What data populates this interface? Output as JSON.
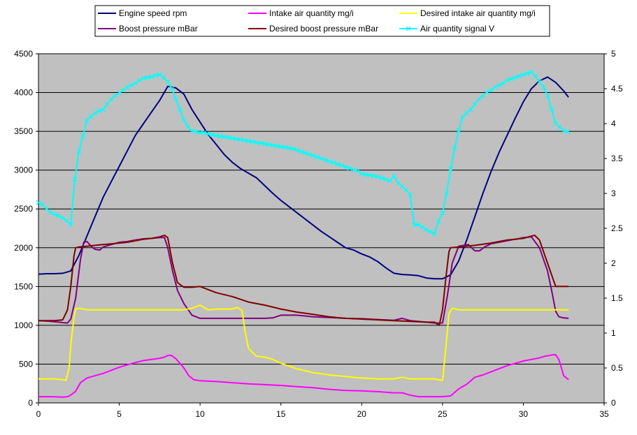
{
  "chart_data": {
    "type": "line",
    "title": "",
    "xlabel": "",
    "ylabel": "",
    "y2label": "",
    "xlim": [
      0,
      35
    ],
    "ylim": [
      0,
      4500
    ],
    "y2lim": [
      0,
      5
    ],
    "x_ticks": [
      "0",
      "5",
      "10",
      "15",
      "20",
      "25",
      "30",
      "35"
    ],
    "y_ticks": [
      "0",
      "500",
      "1000",
      "1500",
      "2000",
      "2500",
      "3000",
      "3500",
      "4000",
      "4500"
    ],
    "y2_ticks": [
      "0",
      "0.5",
      "1",
      "1.5",
      "2",
      "2.5",
      "3",
      "3.5",
      "4",
      "4.5",
      "5"
    ],
    "grid": "horizontal",
    "legend_position": "top",
    "plot_background": "#c0c0c0",
    "series": [
      {
        "name": "Engine speed rpm",
        "color": "#000080",
        "axis": "left",
        "marker": "none",
        "x": [
          0,
          0.5,
          1,
          1.5,
          2,
          2.5,
          3,
          3.5,
          4,
          4.5,
          5,
          5.5,
          6,
          6.5,
          7,
          7.5,
          8,
          8.5,
          9,
          9.5,
          10,
          10.5,
          11,
          11.5,
          12,
          12.5,
          13,
          13.5,
          14,
          14.5,
          15,
          15.5,
          16,
          16.5,
          17,
          17.5,
          18,
          18.5,
          19,
          19.5,
          20,
          20.5,
          21,
          21.5,
          22,
          22.5,
          23,
          23.5,
          24,
          24.5,
          25,
          25.5,
          26,
          26.5,
          27,
          27.5,
          28,
          28.5,
          29,
          29.5,
          30,
          30.5,
          31,
          31.5,
          32,
          32.5,
          32.8
        ],
        "y": [
          1660,
          1665,
          1665,
          1670,
          1700,
          1900,
          2150,
          2400,
          2650,
          2850,
          3050,
          3250,
          3450,
          3600,
          3750,
          3900,
          4080,
          4060,
          3980,
          3780,
          3620,
          3460,
          3330,
          3200,
          3100,
          3020,
          2960,
          2900,
          2800,
          2700,
          2610,
          2530,
          2450,
          2370,
          2290,
          2210,
          2140,
          2070,
          2000,
          1970,
          1920,
          1880,
          1820,
          1740,
          1670,
          1655,
          1650,
          1640,
          1610,
          1600,
          1600,
          1650,
          1830,
          2100,
          2400,
          2700,
          2980,
          3230,
          3450,
          3670,
          3880,
          4050,
          4150,
          4200,
          4130,
          4020,
          3940
        ]
      },
      {
        "name": "Boost pressure mBar",
        "color": "#800080",
        "axis": "left",
        "marker": "none",
        "x": [
          0,
          0.5,
          1,
          1.5,
          1.8,
          2,
          2.3,
          2.6,
          2.8,
          3,
          3.3,
          3.5,
          3.8,
          4,
          4.5,
          5,
          5.5,
          6,
          6.5,
          7,
          7.5,
          7.8,
          8,
          8.3,
          8.6,
          9,
          9.5,
          10,
          11,
          12,
          13,
          14,
          14.5,
          15,
          16,
          17,
          18,
          19,
          20,
          21,
          22,
          22.5,
          23,
          24,
          24.5,
          25,
          25.3,
          25.6,
          26,
          26.3,
          26.6,
          27,
          27.3,
          27.6,
          28,
          29,
          30,
          30.5,
          31,
          31.5,
          31.8,
          32,
          32.2,
          32.5,
          32.8
        ],
        "y": [
          1060,
          1055,
          1045,
          1035,
          1030,
          1080,
          1350,
          1850,
          2070,
          2080,
          2010,
          1980,
          1970,
          2010,
          2040,
          2070,
          2080,
          2100,
          2115,
          2120,
          2130,
          2130,
          2000,
          1700,
          1450,
          1280,
          1130,
          1090,
          1090,
          1090,
          1090,
          1090,
          1095,
          1130,
          1130,
          1110,
          1100,
          1090,
          1085,
          1075,
          1065,
          1090,
          1060,
          1040,
          1030,
          1030,
          1380,
          1800,
          2020,
          2030,
          2040,
          1960,
          1960,
          2010,
          2050,
          2090,
          2130,
          2140,
          2000,
          1700,
          1400,
          1180,
          1110,
          1095,
          1090
        ]
      },
      {
        "name": "Intake air quantity mg/i",
        "color": "#ff00ff",
        "axis": "left",
        "marker": "none",
        "x": [
          0,
          0.5,
          1,
          1.5,
          1.8,
          2,
          2.3,
          2.6,
          3,
          3.5,
          4,
          4.5,
          5,
          5.5,
          6,
          6.5,
          7,
          7.5,
          7.8,
          8,
          8.2,
          8.5,
          9,
          9.3,
          9.6,
          10,
          11,
          12,
          13,
          14,
          15,
          16,
          17,
          18,
          19,
          20,
          21,
          22,
          22.5,
          23,
          23.5,
          24,
          24.5,
          25,
          25.5,
          26,
          26.5,
          27,
          27.5,
          28,
          28.5,
          29,
          29.5,
          30,
          30.5,
          31,
          31.3,
          31.6,
          31.8,
          32,
          32.2,
          32.5,
          32.8
        ],
        "y": [
          80,
          80,
          78,
          75,
          80,
          100,
          150,
          260,
          320,
          350,
          380,
          420,
          460,
          490,
          520,
          545,
          560,
          575,
          590,
          610,
          615,
          570,
          450,
          350,
          300,
          285,
          275,
          260,
          245,
          235,
          225,
          210,
          195,
          175,
          160,
          155,
          145,
          130,
          130,
          100,
          80,
          80,
          80,
          80,
          90,
          180,
          240,
          330,
          360,
          400,
          440,
          480,
          510,
          540,
          560,
          580,
          600,
          610,
          620,
          620,
          560,
          350,
          300
        ]
      },
      {
        "name": "Desired boost pressure mBar",
        "color": "#800000",
        "axis": "left",
        "marker": "none",
        "x": [
          0,
          0.5,
          1,
          1.5,
          1.8,
          2,
          2.2,
          2.3,
          2.5,
          3,
          3.5,
          4,
          4.5,
          5,
          5.5,
          6,
          6.5,
          7,
          7.5,
          7.8,
          8,
          8.3,
          8.6,
          9,
          9.5,
          10,
          11,
          12,
          13,
          14,
          15,
          16,
          17,
          18,
          19,
          20,
          21,
          22,
          23,
          24,
          24.5,
          24.8,
          25,
          25.2,
          25.4,
          25.5,
          26,
          27,
          28,
          29,
          29.5,
          30,
          30.5,
          30.7,
          31,
          31.5,
          32,
          32.3,
          32.8
        ],
        "y": [
          1060,
          1060,
          1060,
          1070,
          1200,
          1500,
          1900,
          2000,
          2010,
          2020,
          2030,
          2040,
          2050,
          2060,
          2070,
          2090,
          2110,
          2120,
          2140,
          2160,
          2130,
          1800,
          1550,
          1490,
          1490,
          1500,
          1420,
          1370,
          1300,
          1260,
          1210,
          1170,
          1140,
          1110,
          1090,
          1080,
          1070,
          1060,
          1050,
          1040,
          1040,
          1000,
          1200,
          1600,
          1950,
          2000,
          2010,
          2030,
          2060,
          2100,
          2110,
          2120,
          2150,
          2160,
          2100,
          1800,
          1500,
          1500,
          1500
        ]
      },
      {
        "name": "Desired intake air quantity mg/i",
        "color": "#ffff00",
        "axis": "left",
        "marker": "none",
        "x": [
          0,
          0.5,
          1,
          1.5,
          1.7,
          1.9,
          2,
          2.2,
          2.3,
          2.5,
          3,
          4,
          5,
          6,
          7,
          8,
          9,
          9.5,
          10,
          10.5,
          11,
          11.5,
          12,
          12.3,
          12.6,
          12.8,
          13,
          13.5,
          14,
          14.5,
          15,
          16,
          17,
          18,
          19,
          20,
          21,
          22,
          22.5,
          23,
          23.5,
          24,
          24.5,
          25,
          25.2,
          25.4,
          25.6,
          26,
          27,
          28,
          29,
          30,
          31,
          32,
          32.8
        ],
        "y": [
          310,
          310,
          310,
          300,
          290,
          450,
          750,
          1100,
          1210,
          1220,
          1200,
          1200,
          1200,
          1200,
          1200,
          1200,
          1200,
          1220,
          1260,
          1200,
          1210,
          1210,
          1210,
          1230,
          1190,
          900,
          700,
          600,
          590,
          560,
          510,
          440,
          390,
          360,
          340,
          320,
          310,
          310,
          330,
          310,
          310,
          310,
          310,
          290,
          700,
          1150,
          1220,
          1200,
          1200,
          1200,
          1200,
          1200,
          1200,
          1200,
          1200
        ]
      },
      {
        "name": "Air quantity signal V",
        "color": "#00ffff",
        "axis": "right",
        "marker": "x",
        "x": [
          0,
          0.25,
          0.5,
          0.75,
          1,
          1.25,
          1.5,
          1.75,
          2,
          2.25,
          2.5,
          2.75,
          3,
          3.25,
          3.5,
          3.75,
          4,
          4.25,
          4.5,
          4.75,
          5,
          5.25,
          5.5,
          5.75,
          6,
          6.25,
          6.5,
          6.75,
          7,
          7.25,
          7.5,
          7.75,
          8,
          8.25,
          8.5,
          8.75,
          9,
          9.25,
          9.5,
          9.75,
          10,
          10.25,
          10.5,
          10.75,
          11,
          11.25,
          11.5,
          11.75,
          12,
          12.25,
          12.5,
          12.75,
          13,
          13.25,
          13.5,
          13.75,
          14,
          14.25,
          14.5,
          14.75,
          15,
          15.25,
          15.5,
          15.75,
          16,
          16.25,
          16.5,
          16.75,
          17,
          17.25,
          17.5,
          17.75,
          18,
          18.25,
          18.5,
          18.75,
          19,
          19.25,
          19.5,
          19.75,
          20,
          20.25,
          20.5,
          20.75,
          21,
          21.25,
          21.5,
          21.75,
          22,
          22.25,
          22.5,
          22.75,
          23,
          23.25,
          23.5,
          23.75,
          24,
          24.25,
          24.5,
          24.75,
          25,
          25.25,
          25.5,
          25.75,
          26,
          26.25,
          26.5,
          26.75,
          27,
          27.25,
          27.5,
          27.75,
          28,
          28.25,
          28.5,
          28.75,
          29,
          29.25,
          29.5,
          29.75,
          30,
          30.25,
          30.5,
          30.75,
          31,
          31.25,
          31.5,
          31.75,
          32,
          32.25,
          32.5,
          32.75
        ],
        "y": [
          2.87,
          2.84,
          2.78,
          2.73,
          2.7,
          2.68,
          2.65,
          2.61,
          2.55,
          3.2,
          3.6,
          3.82,
          4.05,
          4.1,
          4.15,
          4.18,
          4.2,
          4.28,
          4.35,
          4.4,
          4.44,
          4.48,
          4.52,
          4.55,
          4.58,
          4.62,
          4.65,
          4.66,
          4.67,
          4.69,
          4.7,
          4.66,
          4.6,
          4.5,
          4.35,
          4.2,
          4.05,
          3.95,
          3.9,
          3.88,
          3.87,
          3.87,
          3.85,
          3.84,
          3.83,
          3.82,
          3.81,
          3.8,
          3.79,
          3.78,
          3.77,
          3.76,
          3.75,
          3.74,
          3.73,
          3.72,
          3.71,
          3.7,
          3.69,
          3.68,
          3.67,
          3.66,
          3.65,
          3.64,
          3.62,
          3.6,
          3.58,
          3.56,
          3.54,
          3.52,
          3.5,
          3.48,
          3.46,
          3.44,
          3.42,
          3.4,
          3.38,
          3.36,
          3.34,
          3.32,
          3.28,
          3.27,
          3.26,
          3.25,
          3.24,
          3.22,
          3.2,
          3.18,
          3.25,
          3.15,
          3.1,
          3.05,
          2.98,
          2.55,
          2.55,
          2.52,
          2.48,
          2.45,
          2.42,
          2.6,
          2.72,
          3.0,
          3.35,
          3.65,
          3.9,
          4.1,
          4.15,
          4.2,
          4.28,
          4.35,
          4.4,
          4.45,
          4.48,
          4.52,
          4.55,
          4.58,
          4.62,
          4.64,
          4.66,
          4.68,
          4.7,
          4.72,
          4.74,
          4.68,
          4.6,
          4.52,
          4.4,
          4.2,
          4.0,
          3.95,
          3.9,
          3.88
        ]
      }
    ]
  }
}
